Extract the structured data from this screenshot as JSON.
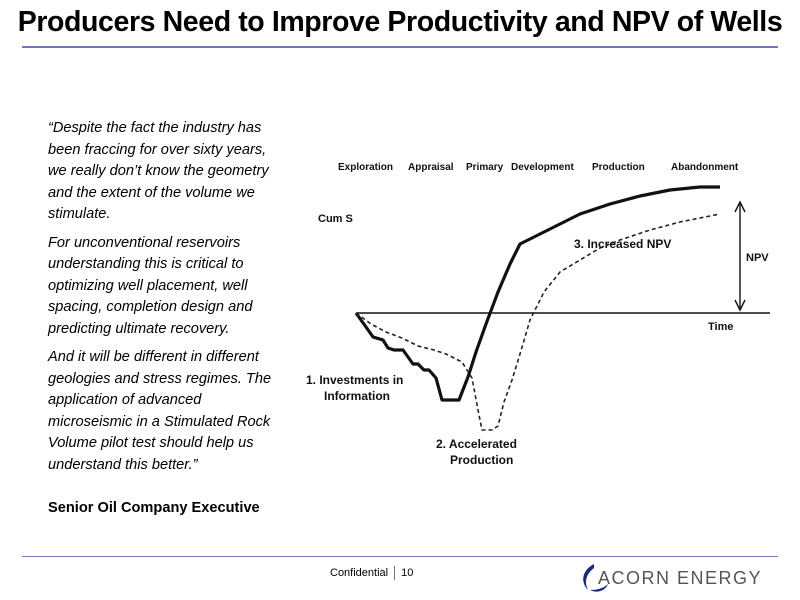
{
  "slide": {
    "title": "Producers Need to Improve Productivity and NPV of Wells"
  },
  "quote": {
    "paragraphs": [
      "“Despite the fact the industry has been fraccing for over sixty years, we really don’t know the geometry and the extent of the volume we stimulate.",
      "For unconventional reservoirs understanding this is critical to optimizing well placement, well spacing, completion design and predicting ultimate recovery.",
      "And it will be different in different geologies and stress regimes.  The application of advanced microseismic in a Stimulated Rock Volume pilot test should help us understand this better.”"
    ],
    "attribution": "Senior Oil Company Executive"
  },
  "figure": {
    "phases": [
      "Exploration",
      "Appraisal",
      "Primary",
      "Development",
      "Production",
      "Abandonment"
    ],
    "y_axis_label": "Cum S",
    "x_axis_label": "Time",
    "npv_label": "NPV",
    "annotations": {
      "investments_line1": "1. Investments in",
      "investments_line2": "Information",
      "accelerated_line1": "2. Accelerated",
      "accelerated_line2": "Production",
      "increased_npv": "3. Increased NPV"
    }
  },
  "footer": {
    "confidential": "Confidential",
    "page_number": "10"
  },
  "logo": {
    "text": "ACORN ENERGY",
    "colors": {
      "swoosh": "#1c2a7a",
      "text": "#555555"
    }
  },
  "colors": {
    "rule": "#6f76b8"
  }
}
